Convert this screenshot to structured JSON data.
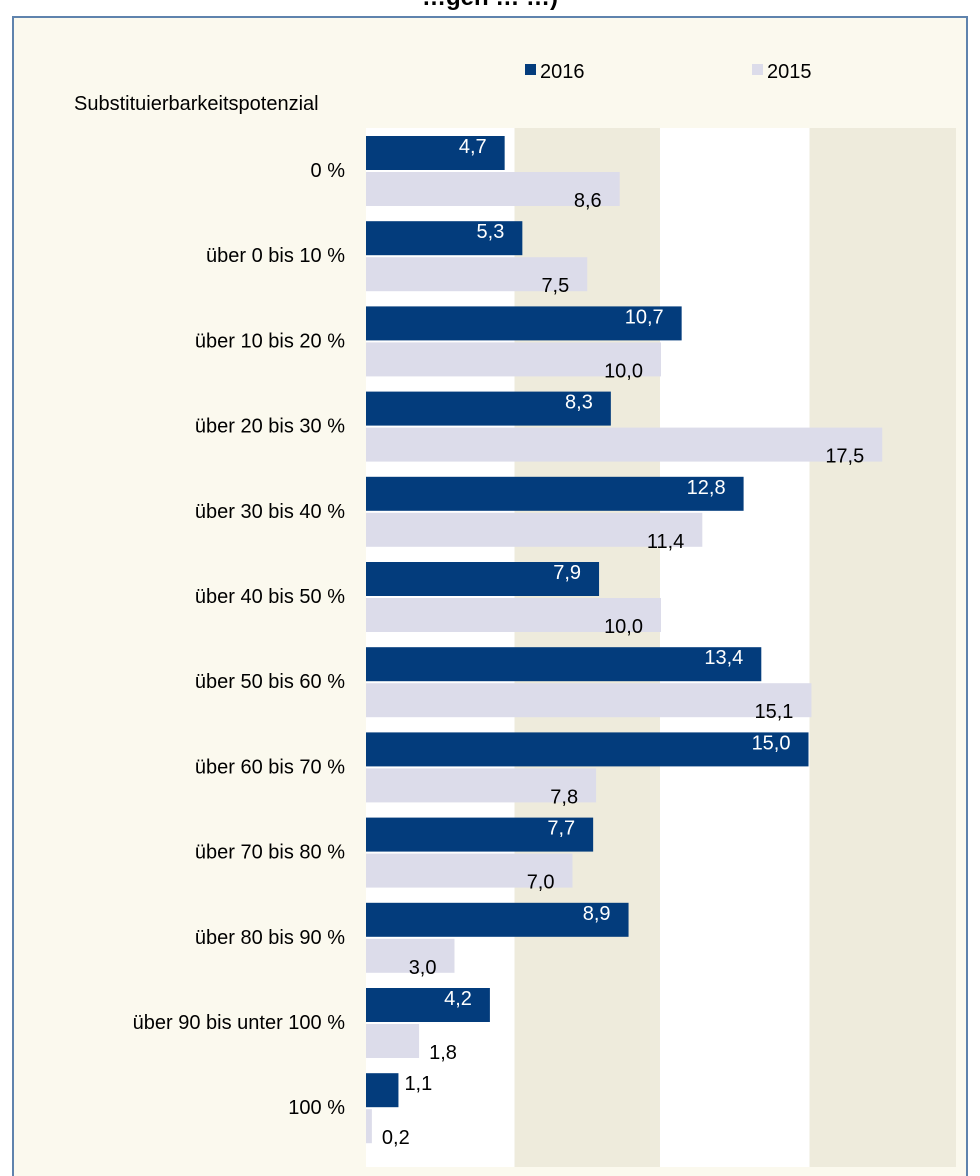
{
  "title": "…gen … …)",
  "chart_data": {
    "type": "bar",
    "orientation": "horizontal",
    "category_axis_title": "Substituierbarkeitspotenzial",
    "categories": [
      "0 %",
      "über 0 bis 10 %",
      "über 10 bis 20 %",
      "über 20 bis 30 %",
      "über 30 bis 40 %",
      "über 40 bis 50 %",
      "über 50 bis 60 %",
      "über 60 bis 70 %",
      "über 70 bis 80 %",
      "über 80 bis 90 %",
      "über 90 bis unter 100 %",
      "100 %"
    ],
    "series": [
      {
        "name": "2016",
        "color": "#033c7c",
        "values": [
          4.7,
          5.3,
          10.7,
          8.3,
          12.8,
          7.9,
          13.4,
          15.0,
          7.7,
          8.9,
          4.2,
          1.1
        ],
        "labels": [
          "4,7",
          "5,3",
          "10,7",
          "8,3",
          "12,8",
          "7,9",
          "13,4",
          "15,0",
          "7,7",
          "8,9",
          "4,2",
          "1,1"
        ]
      },
      {
        "name": "2015",
        "color": "#dcdcea",
        "values": [
          8.6,
          7.5,
          10.0,
          17.5,
          11.4,
          10.0,
          15.1,
          7.8,
          7.0,
          3.0,
          1.8,
          0.2
        ],
        "labels": [
          "8,6",
          "7,5",
          "10,0",
          "17,5",
          "11,4",
          "10,0",
          "15,1",
          "7,8",
          "7,0",
          "3,0",
          "1,8",
          "0,2"
        ]
      }
    ],
    "xlim": [
      0,
      20
    ],
    "grid": true,
    "legend_position": "top",
    "plot_band_colors": [
      "#ffffff",
      "#eeebdc"
    ],
    "gridline_color": "#ffffff"
  }
}
